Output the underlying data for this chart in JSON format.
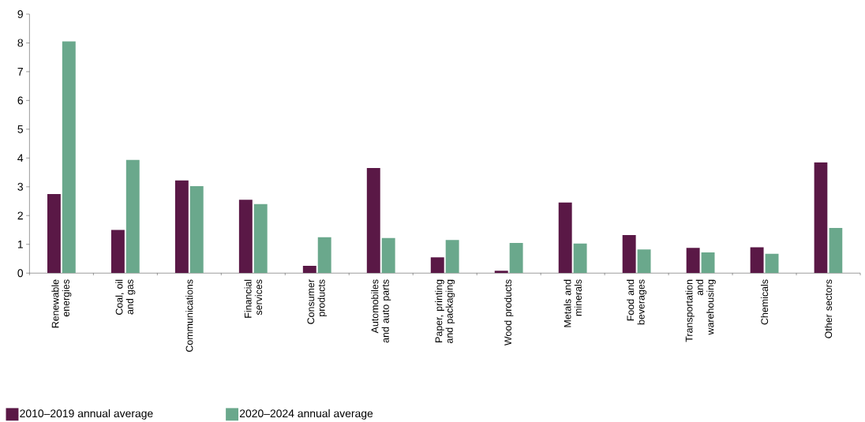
{
  "chart_data": {
    "type": "bar",
    "categories": [
      "Renewable energies",
      "Coal, oil and gas",
      "Communications",
      "Financial services",
      "Consumer products",
      "Automobiles and auto parts",
      "Paper, printing and packaging",
      "Wood products",
      "Metals and minerals",
      "Food and beverages",
      "Transportation and warehousing",
      "Chemicals",
      "Other sectors"
    ],
    "series": [
      {
        "name": "2010–2019 annual average",
        "color": "#5a1846",
        "values": [
          2.75,
          1.5,
          3.22,
          2.55,
          0.25,
          3.65,
          0.55,
          0.08,
          2.45,
          1.32,
          0.88,
          0.9,
          3.85
        ]
      },
      {
        "name": "2020–2024 annual average",
        "color": "#6aa88c",
        "values": [
          8.05,
          3.93,
          3.02,
          2.4,
          1.25,
          1.22,
          1.15,
          1.05,
          1.03,
          0.82,
          0.72,
          0.67,
          1.57
        ]
      }
    ],
    "ylim": [
      0,
      9
    ],
    "yticks": [
      0,
      1,
      2,
      3,
      4,
      5,
      6,
      7,
      8,
      9
    ],
    "grid": false,
    "legend": "bottom left"
  }
}
